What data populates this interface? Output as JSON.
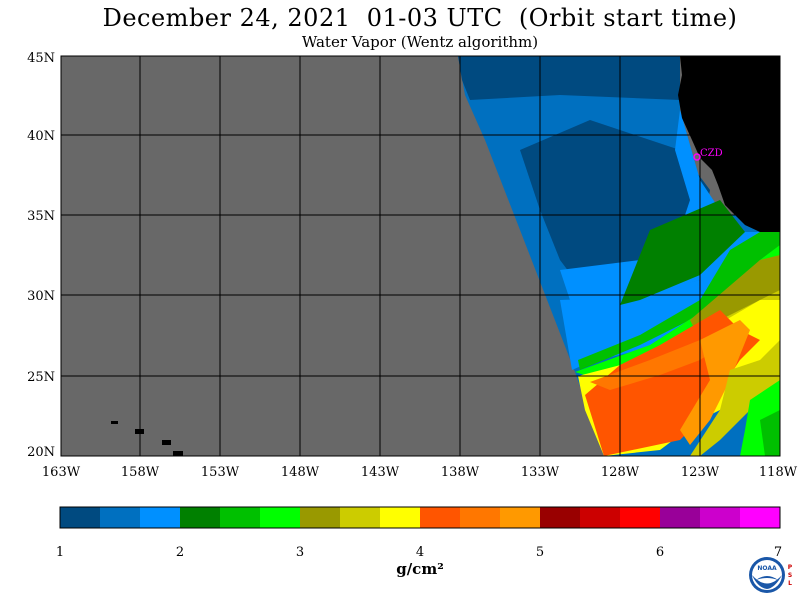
{
  "header": {
    "title": "December 24, 2021  01-03 UTC  (Orbit start time)",
    "subtitle": "Water Vapor (Wentz algorithm)"
  },
  "map": {
    "lat_labels": [
      "45N",
      "40N",
      "35N",
      "30N",
      "25N",
      "20N"
    ],
    "lon_labels": [
      "163W",
      "158W",
      "153W",
      "148W",
      "143W",
      "138W",
      "133W",
      "128W",
      "123W",
      "118W"
    ],
    "station_label": "CZD",
    "colors": {
      "no_data": "#686868",
      "land": "#000000",
      "station": "#ff00ff",
      "grid": "#000000"
    }
  },
  "colorbar": {
    "tick_labels": [
      "1",
      "2",
      "3",
      "4",
      "5",
      "6",
      "7"
    ],
    "units": "g/cm²",
    "colors": [
      "#004a80",
      "#0070c0",
      "#0090ff",
      "#008000",
      "#00c000",
      "#00ff00",
      "#999900",
      "#cccc00",
      "#ffff00",
      "#ff5500",
      "#ff7700",
      "#ff9900",
      "#990000",
      "#cc0000",
      "#ff0000",
      "#990099",
      "#cc00cc",
      "#ff00ff"
    ]
  },
  "logo": {
    "text": "NOAA",
    "side_text": [
      "P",
      "S",
      "L"
    ]
  }
}
